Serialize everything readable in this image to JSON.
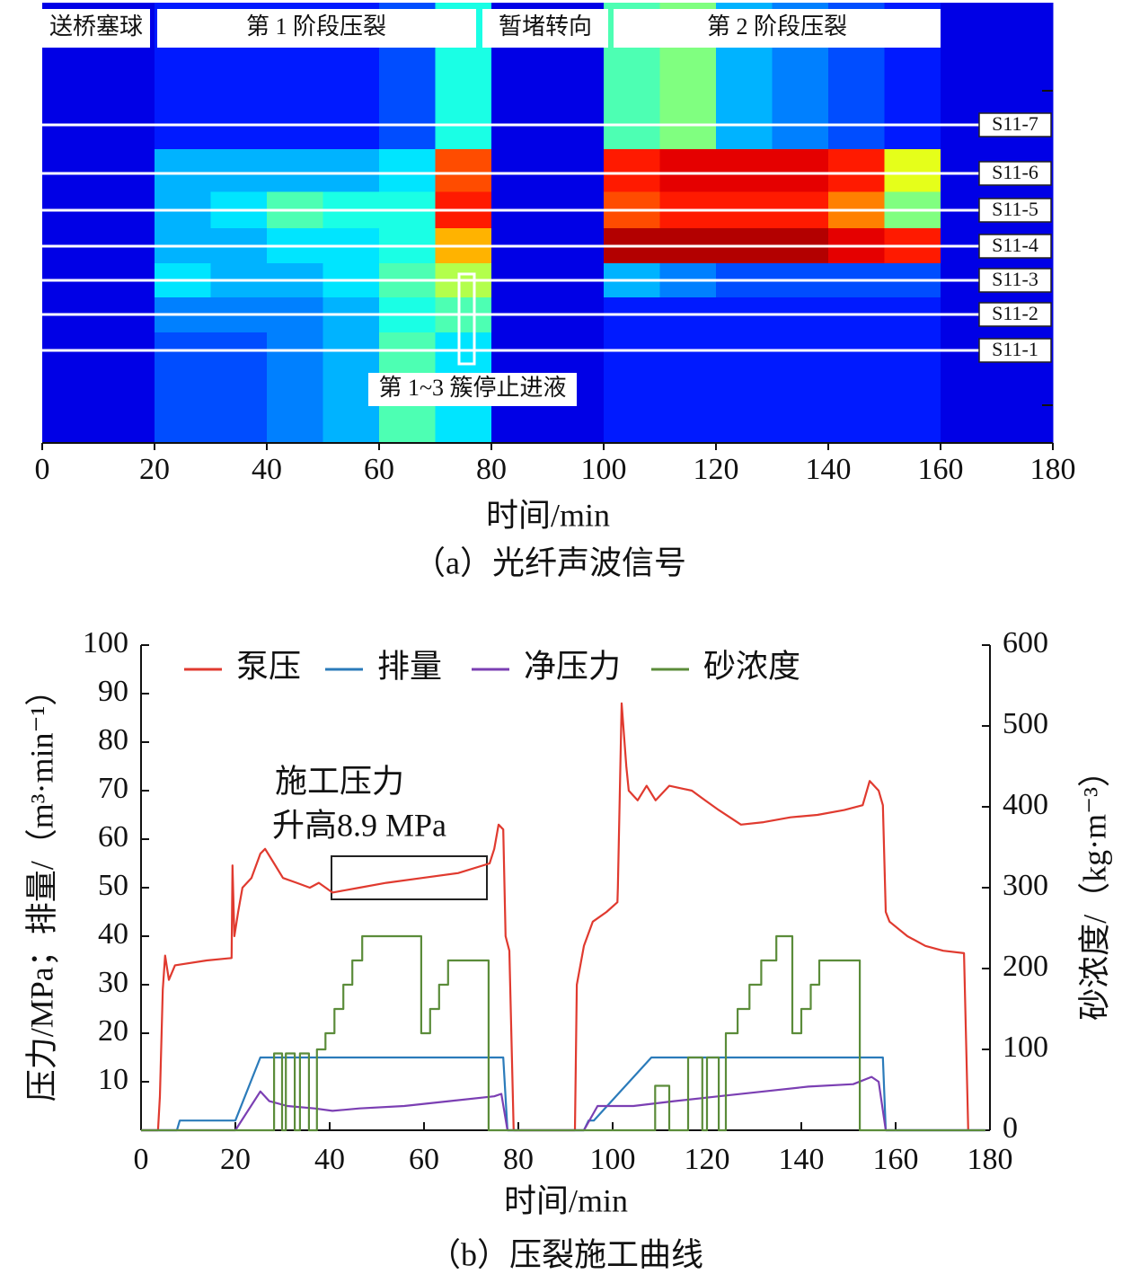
{
  "chart_data": [
    {
      "type": "heatmap",
      "caption": "（a）光纤声波信号",
      "xlabel": "时间/min",
      "xlim": [
        0,
        180
      ],
      "xticks": [
        0,
        20,
        40,
        60,
        80,
        100,
        120,
        140,
        160,
        180
      ],
      "stages": [
        "送桥塞球",
        "第 1 阶段压裂",
        "暂堵转向",
        "第 2 阶段压裂"
      ],
      "annotation": "第 1~3 簇停止进液",
      "rows": [
        "S11-7",
        "S11-6",
        "S11-5",
        "S11-4",
        "S11-3",
        "S11-2",
        "S11-1"
      ],
      "x_bins": [
        0,
        10,
        20,
        30,
        40,
        50,
        60,
        70,
        80,
        90,
        100,
        110,
        120,
        130,
        140,
        150,
        160,
        170,
        180
      ],
      "clim": [
        0,
        1
      ],
      "colormap": "jet",
      "values": [
        [
          0.1,
          0.1,
          0.15,
          0.15,
          0.15,
          0.15,
          0.2,
          0.4,
          0.1,
          0.1,
          0.45,
          0.5,
          0.3,
          0.25,
          0.2,
          0.15,
          0.1,
          0.1
        ],
        [
          0.1,
          0.1,
          0.3,
          0.3,
          0.3,
          0.3,
          0.35,
          0.8,
          0.1,
          0.1,
          0.85,
          0.9,
          0.9,
          0.9,
          0.85,
          0.6,
          0.1,
          0.1
        ],
        [
          0.1,
          0.1,
          0.3,
          0.35,
          0.45,
          0.4,
          0.4,
          0.85,
          0.1,
          0.1,
          0.8,
          0.85,
          0.85,
          0.85,
          0.75,
          0.5,
          0.1,
          0.1
        ],
        [
          0.1,
          0.1,
          0.3,
          0.3,
          0.35,
          0.35,
          0.4,
          0.7,
          0.1,
          0.1,
          0.95,
          0.95,
          0.95,
          0.95,
          0.9,
          0.85,
          0.1,
          0.1
        ],
        [
          0.1,
          0.1,
          0.35,
          0.3,
          0.3,
          0.35,
          0.45,
          0.55,
          0.1,
          0.1,
          0.3,
          0.25,
          0.2,
          0.2,
          0.2,
          0.2,
          0.1,
          0.1
        ],
        [
          0.1,
          0.1,
          0.25,
          0.25,
          0.25,
          0.3,
          0.4,
          0.45,
          0.1,
          0.1,
          0.15,
          0.15,
          0.15,
          0.15,
          0.15,
          0.15,
          0.1,
          0.1
        ],
        [
          0.1,
          0.1,
          0.2,
          0.2,
          0.25,
          0.3,
          0.45,
          0.35,
          0.1,
          0.1,
          0.15,
          0.15,
          0.15,
          0.15,
          0.15,
          0.15,
          0.1,
          0.1
        ]
      ]
    },
    {
      "type": "line",
      "caption": "（b）压裂施工曲线",
      "xlabel": "时间/min",
      "ylabel": "压力/MPa；排量/（m³·min⁻¹）",
      "y2label": "砂浓度/（kg·m⁻³）",
      "annotation": [
        "施工压力",
        "升高8.9 MPa"
      ],
      "xlim": [
        0,
        180
      ],
      "xticks": [
        0,
        20,
        40,
        60,
        80,
        100,
        120,
        140,
        160,
        180
      ],
      "ylim": [
        0,
        100
      ],
      "yticks": [
        10,
        20,
        30,
        40,
        50,
        60,
        70,
        80,
        90,
        100
      ],
      "y2lim": [
        0,
        600
      ],
      "y2ticks": [
        0,
        100,
        200,
        300,
        400,
        500,
        600
      ],
      "legend": "upper left",
      "series": [
        {
          "name": "泵压",
          "color": "#e03a2f",
          "x": [
            0,
            3.6,
            4,
            4.6,
            5.1,
            5.9,
            7.2,
            13.9,
            19.2,
            19.4,
            19.8,
            20.6,
            21.5,
            23.4,
            25.3,
            26.3,
            28.2,
            30.1,
            33,
            35.8,
            37.7,
            40.6,
            46.3,
            52,
            59.6,
            67.2,
            73.9,
            74.9,
            75.8,
            76.8,
            77.3,
            78.1,
            79,
            92,
            92.4,
            93.9,
            95.8,
            98.7,
            101,
            101.1,
            101.9,
            102.9,
            103.4,
            105.3,
            107.2,
            109.1,
            112,
            116.8,
            119.6,
            122.5,
            127.2,
            132,
            137.7,
            143.4,
            149.1,
            153,
            154.5,
            156.4,
            157.3,
            157.9,
            158.7,
            162.5,
            166.3,
            170.1,
            174.5,
            175.4
          ],
          "values": [
            0,
            0,
            7,
            29,
            36,
            31,
            34,
            35,
            35.5,
            54.6,
            40,
            45,
            50,
            52,
            57,
            58,
            55,
            52,
            51,
            50,
            51,
            49,
            50,
            51,
            52,
            53,
            55,
            58,
            63,
            62,
            40,
            37,
            0,
            0,
            30,
            38,
            43,
            45,
            47,
            50,
            88,
            75,
            70,
            68,
            71,
            68,
            71,
            70,
            68,
            66,
            63,
            63.5,
            64.5,
            65,
            66,
            67,
            72,
            70,
            67,
            45,
            43,
            40,
            38,
            37,
            36.5,
            0
          ]
        },
        {
          "name": "排量",
          "color": "#2b7bba",
          "x": [
            0,
            7.6,
            8.2,
            20,
            25.3,
            76.8,
            77.7,
            93.9,
            94.9,
            96,
            108.2,
            157.3,
            157.9,
            179
          ],
          "values": [
            0,
            0,
            2,
            2,
            15,
            15,
            0,
            0,
            2,
            2,
            15,
            15,
            0,
            0
          ]
        },
        {
          "name": "净压力",
          "color": "#7b3fb3",
          "x": [
            0,
            20,
            25.3,
            27.2,
            31,
            36.8,
            40.6,
            46.3,
            55.8,
            65.3,
            74.9,
            76.4,
            77.7,
            93.9,
            96.8,
            104.4,
            113,
            122.5,
            132,
            141.5,
            151,
            154.9,
            156.4,
            157.9,
            179
          ],
          "values": [
            0,
            0,
            8,
            6,
            5,
            4.5,
            4,
            4.5,
            5,
            6,
            7,
            7.5,
            0,
            0,
            5,
            5,
            6,
            7,
            8,
            9,
            9.5,
            11,
            10,
            0,
            0
          ]
        },
        {
          "name": "砂浓度",
          "color": "#5b8c3a",
          "axis": "y2",
          "x": [
            0,
            27,
            28.2,
            28.2,
            29.9,
            29.9,
            30.7,
            30.7,
            32.6,
            32.6,
            33.7,
            33.7,
            35.6,
            35.6,
            37.3,
            37.3,
            39.1,
            39.1,
            41,
            41,
            42.9,
            42.9,
            44.8,
            44.8,
            46.9,
            46.9,
            59.4,
            59.4,
            61.3,
            61.3,
            63.2,
            63.2,
            65.1,
            65.1,
            73.7,
            73.7,
            109,
            109,
            112,
            112,
            116,
            116,
            119,
            119,
            120,
            120,
            122.5,
            122.5,
            124,
            124,
            126.5,
            126.5,
            129,
            129,
            131.5,
            131.5,
            134.7,
            134.7,
            138.1,
            138.1,
            140,
            140,
            142,
            142,
            143.8,
            143.8,
            152.4,
            152.4,
            179
          ],
          "values": [
            0,
            0,
            0,
            95,
            95,
            0,
            0,
            95,
            95,
            0,
            0,
            95,
            95,
            0,
            0,
            100,
            100,
            120,
            120,
            150,
            150,
            180,
            180,
            210,
            210,
            240,
            240,
            120,
            120,
            150,
            150,
            180,
            180,
            210,
            210,
            0,
            0,
            55,
            55,
            0,
            0,
            90,
            90,
            0,
            0,
            90,
            90,
            0,
            0,
            120,
            120,
            150,
            150,
            180,
            180,
            210,
            210,
            240,
            240,
            120,
            120,
            150,
            150,
            180,
            180,
            210,
            210,
            0,
            0
          ]
        }
      ]
    }
  ]
}
